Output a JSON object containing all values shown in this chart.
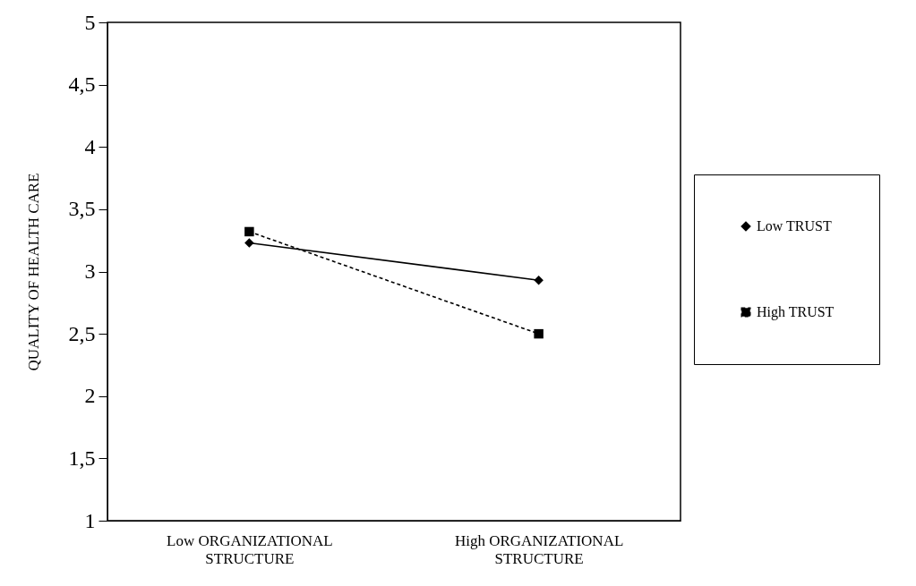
{
  "chart_data": {
    "type": "line",
    "ylabel": "QUALITY OF HEALTH CARE",
    "categories": [
      "Low ORGANIZATIONAL STRUCTURE",
      "High ORGANIZATIONAL STRUCTURE"
    ],
    "series": [
      {
        "name": "Low TRUST",
        "color": "#000000",
        "values": [
          3.23,
          2.93
        ],
        "marker": "diamond",
        "line_style": "solid"
      },
      {
        "name": "High TRUST",
        "color": "#000000",
        "values": [
          3.32,
          2.5
        ],
        "marker": "square",
        "line_style": "dashed"
      }
    ],
    "ylim": [
      1,
      5
    ],
    "yticks": [
      1,
      {
        "value": 1.5,
        "label": "1,5"
      },
      2,
      {
        "value": 2.5,
        "label": "2,5"
      },
      3,
      {
        "value": 3.5,
        "label": "3,5"
      },
      4,
      {
        "value": 4.5,
        "label": "4,5"
      },
      5
    ],
    "legend": "right"
  }
}
